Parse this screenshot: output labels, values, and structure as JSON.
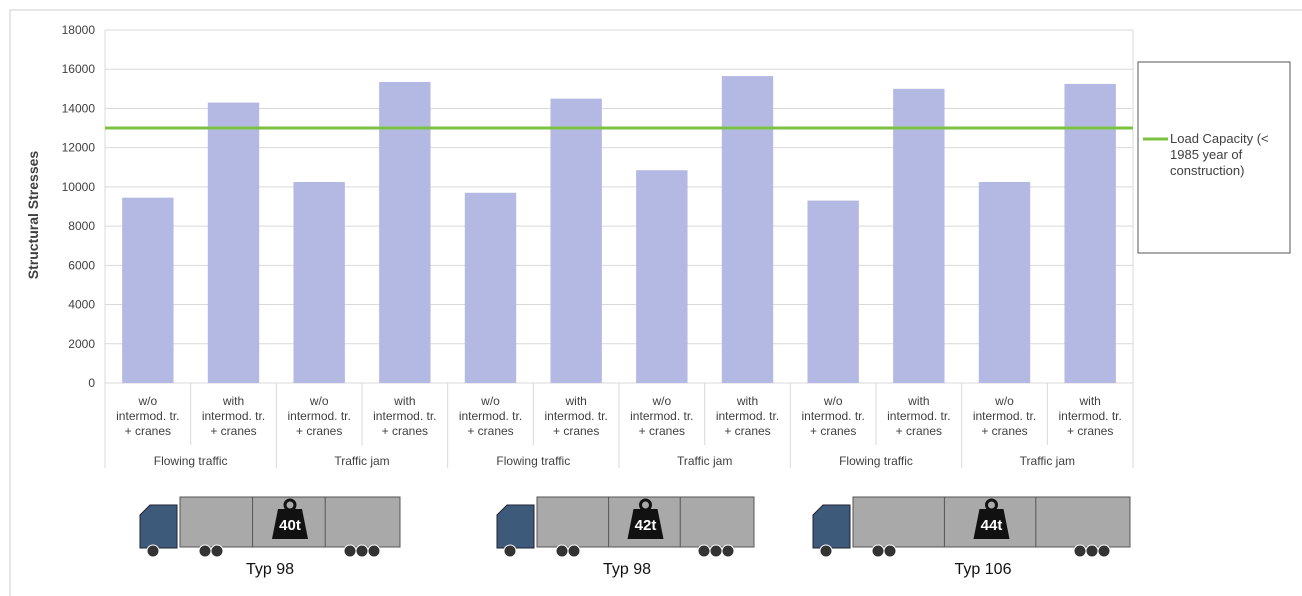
{
  "chart_data": {
    "type": "bar",
    "y_label": "Structural Stresses",
    "categories": [
      [
        "w/o",
        "intermod. tr.",
        "+ cranes"
      ],
      [
        "with",
        "intermod. tr.",
        "+ cranes"
      ],
      [
        "w/o",
        "intermod. tr.",
        "+ cranes"
      ],
      [
        "with",
        "intermod. tr.",
        "+ cranes"
      ],
      [
        "w/o",
        "intermod. tr.",
        "+ cranes"
      ],
      [
        "with",
        "intermod. tr.",
        "+ cranes"
      ],
      [
        "w/o",
        "intermod. tr.",
        "+ cranes"
      ],
      [
        "with",
        "intermod. tr.",
        "+ cranes"
      ],
      [
        "w/o",
        "intermod. tr.",
        "+ cranes"
      ],
      [
        "with",
        "intermod. tr.",
        "+ cranes"
      ],
      [
        "w/o",
        "intermod. tr.",
        "+ cranes"
      ],
      [
        "with",
        "intermod. tr.",
        "+ cranes"
      ]
    ],
    "group_categories": [
      "Flowing traffic",
      "Traffic jam",
      "Flowing traffic",
      "Traffic jam",
      "Flowing traffic",
      "Traffic jam"
    ],
    "values": [
      9450,
      14300,
      10250,
      15350,
      9700,
      14500,
      10850,
      15650,
      9300,
      15000,
      10250,
      15250
    ],
    "color": "#b4b9e4",
    "reference_lines": [
      {
        "name": "Load Capacity (< 1985 year of construction)",
        "value": 13000,
        "color": "#7cc242"
      }
    ],
    "ylim": [
      0,
      18000
    ],
    "yticks": [
      0,
      2000,
      4000,
      6000,
      8000,
      10000,
      12000,
      14000,
      16000,
      18000
    ],
    "grid": true,
    "legend": "right"
  },
  "trucks": [
    {
      "weight": "40t",
      "label": "Typ 98"
    },
    {
      "weight": "42t",
      "label": "Typ 98"
    },
    {
      "weight": "44t",
      "label": "Typ 106"
    }
  ]
}
